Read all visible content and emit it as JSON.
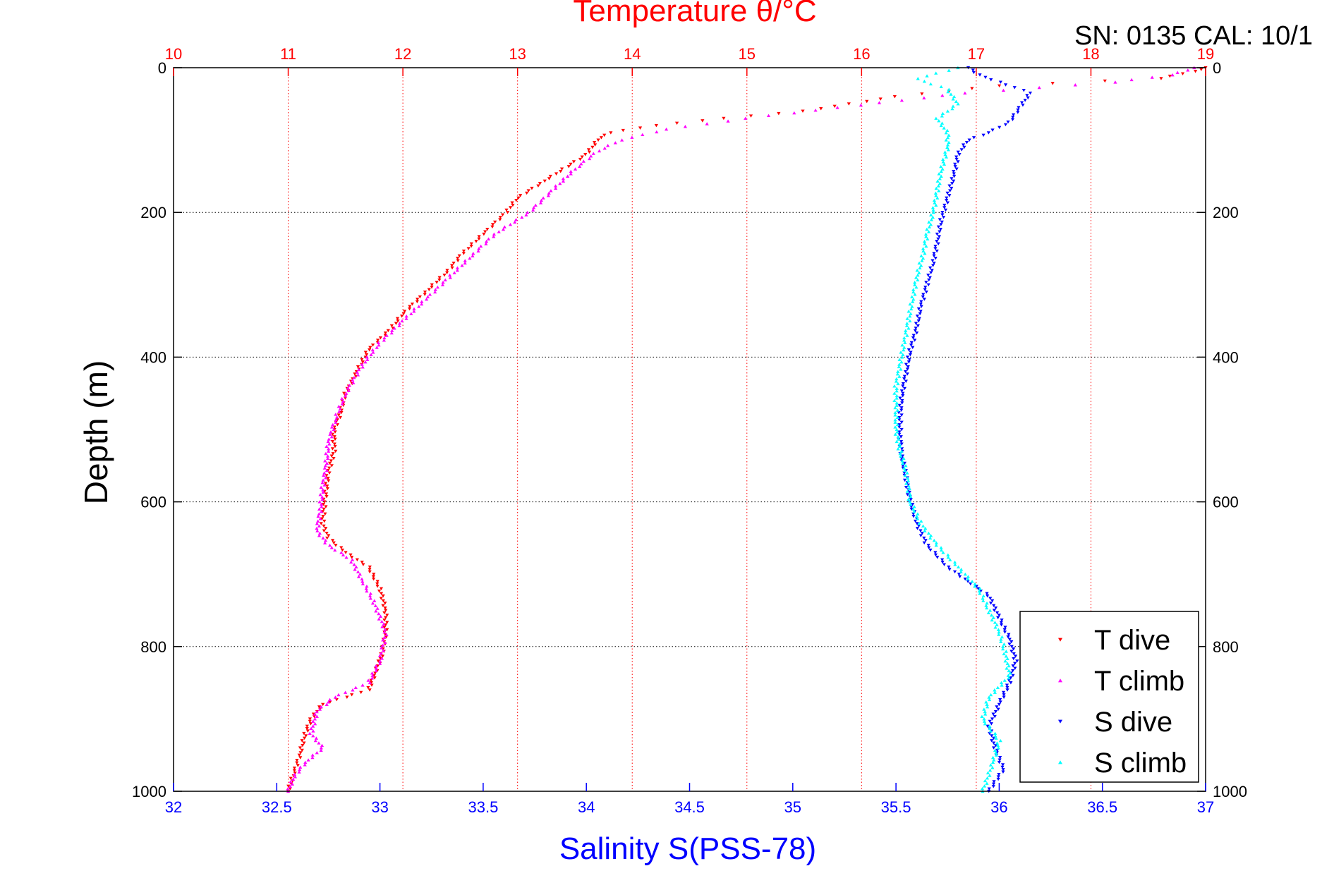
{
  "chart_data": {
    "type": "scatter",
    "title": "Temperature θ/°C",
    "annotation": "SN: 0135  CAL: 10/1",
    "ylabel": "Depth (m)",
    "xlabel_bottom": "Salinity S(PSS-78)",
    "y_axis": {
      "range": [
        0,
        1000
      ],
      "reversed": true,
      "ticks": [
        "0",
        "200",
        "400",
        "600",
        "800",
        "1000"
      ]
    },
    "x_axis_top": {
      "label": "Temperature θ/°C",
      "range": [
        10,
        19
      ],
      "ticks": [
        "10",
        "11",
        "12",
        "13",
        "14",
        "15",
        "16",
        "17",
        "18",
        "19"
      ],
      "color": "#ff0000"
    },
    "x_axis_bottom": {
      "label": "Salinity S(PSS-78)",
      "range": [
        32,
        37
      ],
      "ticks": [
        "32",
        "32.5",
        "33",
        "33.5",
        "34",
        "34.5",
        "35",
        "35.5",
        "36",
        "36.5",
        "37"
      ],
      "color": "#0000ff"
    },
    "grid": true,
    "legend_position": "bottom-right",
    "series": [
      {
        "name": "T dive",
        "axis": "top",
        "color": "#ff0000",
        "marker": "triangle-down",
        "points": [
          [
            19,
            0
          ],
          [
            18.9,
            5
          ],
          [
            18.6,
            15
          ],
          [
            17.2,
            25
          ],
          [
            16.3,
            40
          ],
          [
            15.5,
            60
          ],
          [
            14.8,
            70
          ],
          [
            14.2,
            80
          ],
          [
            13.8,
            90
          ],
          [
            13.7,
            100
          ],
          [
            13.6,
            120
          ],
          [
            13.4,
            140
          ],
          [
            13.2,
            160
          ],
          [
            13.0,
            180
          ],
          [
            12.9,
            200
          ],
          [
            12.7,
            230
          ],
          [
            12.5,
            260
          ],
          [
            12.4,
            280
          ],
          [
            12.2,
            310
          ],
          [
            12.0,
            340
          ],
          [
            11.9,
            360
          ],
          [
            11.7,
            390
          ],
          [
            11.6,
            420
          ],
          [
            11.5,
            450
          ],
          [
            11.45,
            480
          ],
          [
            11.4,
            500
          ],
          [
            11.4,
            530
          ],
          [
            11.35,
            560
          ],
          [
            11.32,
            600
          ],
          [
            11.3,
            630
          ],
          [
            11.35,
            650
          ],
          [
            11.5,
            670
          ],
          [
            11.7,
            690
          ],
          [
            11.8,
            720
          ],
          [
            11.85,
            750
          ],
          [
            11.85,
            780
          ],
          [
            11.82,
            810
          ],
          [
            11.75,
            840
          ],
          [
            11.7,
            860
          ],
          [
            11.5,
            870
          ],
          [
            11.3,
            880
          ],
          [
            11.2,
            900
          ],
          [
            11.15,
            920
          ],
          [
            11.1,
            950
          ],
          [
            11.05,
            975
          ],
          [
            11.0,
            1000
          ]
        ]
      },
      {
        "name": "T climb",
        "axis": "top",
        "color": "#ff00ff",
        "marker": "triangle-up",
        "points": [
          [
            18.9,
            0
          ],
          [
            18.7,
            10
          ],
          [
            18.2,
            20
          ],
          [
            16.9,
            35
          ],
          [
            15.8,
            55
          ],
          [
            15.0,
            70
          ],
          [
            14.3,
            85
          ],
          [
            13.9,
            100
          ],
          [
            13.7,
            115
          ],
          [
            13.5,
            140
          ],
          [
            13.3,
            170
          ],
          [
            13.1,
            200
          ],
          [
            12.8,
            230
          ],
          [
            12.6,
            260
          ],
          [
            12.4,
            290
          ],
          [
            12.2,
            320
          ],
          [
            12.0,
            350
          ],
          [
            11.8,
            380
          ],
          [
            11.65,
            410
          ],
          [
            11.5,
            450
          ],
          [
            11.4,
            490
          ],
          [
            11.35,
            520
          ],
          [
            11.33,
            550
          ],
          [
            11.3,
            580
          ],
          [
            11.28,
            610
          ],
          [
            11.25,
            640
          ],
          [
            11.35,
            660
          ],
          [
            11.55,
            680
          ],
          [
            11.65,
            710
          ],
          [
            11.75,
            740
          ],
          [
            11.85,
            780
          ],
          [
            11.8,
            820
          ],
          [
            11.7,
            850
          ],
          [
            11.4,
            870
          ],
          [
            11.25,
            890
          ],
          [
            11.2,
            920
          ],
          [
            11.3,
            940
          ],
          [
            11.15,
            960
          ],
          [
            11.05,
            980
          ],
          [
            11.0,
            1000
          ]
        ]
      },
      {
        "name": "S dive",
        "axis": "bottom",
        "color": "#0000ff",
        "marker": "triangle-down",
        "points": [
          [
            35.85,
            0
          ],
          [
            35.9,
            10
          ],
          [
            36.0,
            20
          ],
          [
            36.15,
            35
          ],
          [
            36.1,
            55
          ],
          [
            36.05,
            75
          ],
          [
            35.95,
            90
          ],
          [
            35.85,
            100
          ],
          [
            35.8,
            120
          ],
          [
            35.78,
            150
          ],
          [
            35.75,
            180
          ],
          [
            35.72,
            210
          ],
          [
            35.7,
            240
          ],
          [
            35.68,
            270
          ],
          [
            35.65,
            300
          ],
          [
            35.62,
            330
          ],
          [
            35.6,
            360
          ],
          [
            35.57,
            390
          ],
          [
            35.55,
            420
          ],
          [
            35.53,
            450
          ],
          [
            35.52,
            480
          ],
          [
            35.52,
            510
          ],
          [
            35.53,
            540
          ],
          [
            35.55,
            570
          ],
          [
            35.57,
            600
          ],
          [
            35.6,
            630
          ],
          [
            35.65,
            660
          ],
          [
            35.75,
            690
          ],
          [
            35.85,
            710
          ],
          [
            35.95,
            730
          ],
          [
            36.0,
            760
          ],
          [
            36.05,
            790
          ],
          [
            36.08,
            820
          ],
          [
            36.05,
            850
          ],
          [
            36.0,
            880
          ],
          [
            35.95,
            910
          ],
          [
            35.98,
            940
          ],
          [
            36.02,
            970
          ],
          [
            35.95,
            1000
          ]
        ]
      },
      {
        "name": "S climb",
        "axis": "bottom",
        "color": "#00ffff",
        "marker": "triangle-up",
        "points": [
          [
            35.8,
            0
          ],
          [
            35.6,
            15
          ],
          [
            35.75,
            30
          ],
          [
            35.8,
            50
          ],
          [
            35.7,
            70
          ],
          [
            35.75,
            90
          ],
          [
            35.75,
            110
          ],
          [
            35.72,
            140
          ],
          [
            35.7,
            170
          ],
          [
            35.68,
            200
          ],
          [
            35.65,
            230
          ],
          [
            35.63,
            260
          ],
          [
            35.6,
            290
          ],
          [
            35.58,
            320
          ],
          [
            35.56,
            350
          ],
          [
            35.54,
            380
          ],
          [
            35.52,
            410
          ],
          [
            35.5,
            440
          ],
          [
            35.5,
            470
          ],
          [
            35.5,
            500
          ],
          [
            35.52,
            530
          ],
          [
            35.55,
            560
          ],
          [
            35.57,
            600
          ],
          [
            35.62,
            630
          ],
          [
            35.7,
            660
          ],
          [
            35.8,
            690
          ],
          [
            35.9,
            720
          ],
          [
            35.95,
            750
          ],
          [
            36.0,
            780
          ],
          [
            36.03,
            810
          ],
          [
            36.05,
            840
          ],
          [
            35.95,
            870
          ],
          [
            35.92,
            900
          ],
          [
            36.0,
            930
          ],
          [
            35.97,
            960
          ],
          [
            35.92,
            1000
          ]
        ]
      }
    ]
  }
}
